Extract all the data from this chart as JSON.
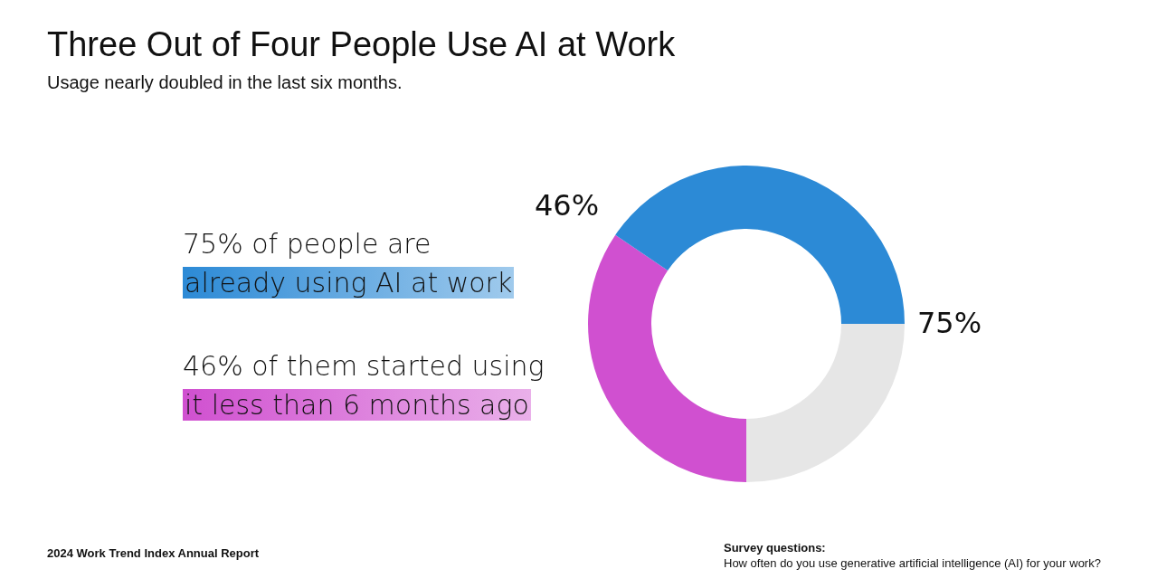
{
  "chart_data": {
    "type": "donut",
    "title": "Three Out of Four People Use AI at Work",
    "subtitle": "Usage nearly doubled in the last six months.",
    "categories": [
      null,
      null,
      null
    ],
    "values": [
      25,
      34.5,
      40.5
    ],
    "colors": [
      "#e6e6e6",
      "#d050d0",
      "#2c8ad6"
    ],
    "annotations": [
      "75%",
      "46%",
      "75% of people are",
      "already using AI at work",
      "46% of them started using",
      "it less than 6 months ago",
      "2024 Work Trend Index Annual Report",
      "Survey questions:",
      "How often do you use generative artificial intelligence (AI) for your work?"
    ],
    "legend": false
  }
}
